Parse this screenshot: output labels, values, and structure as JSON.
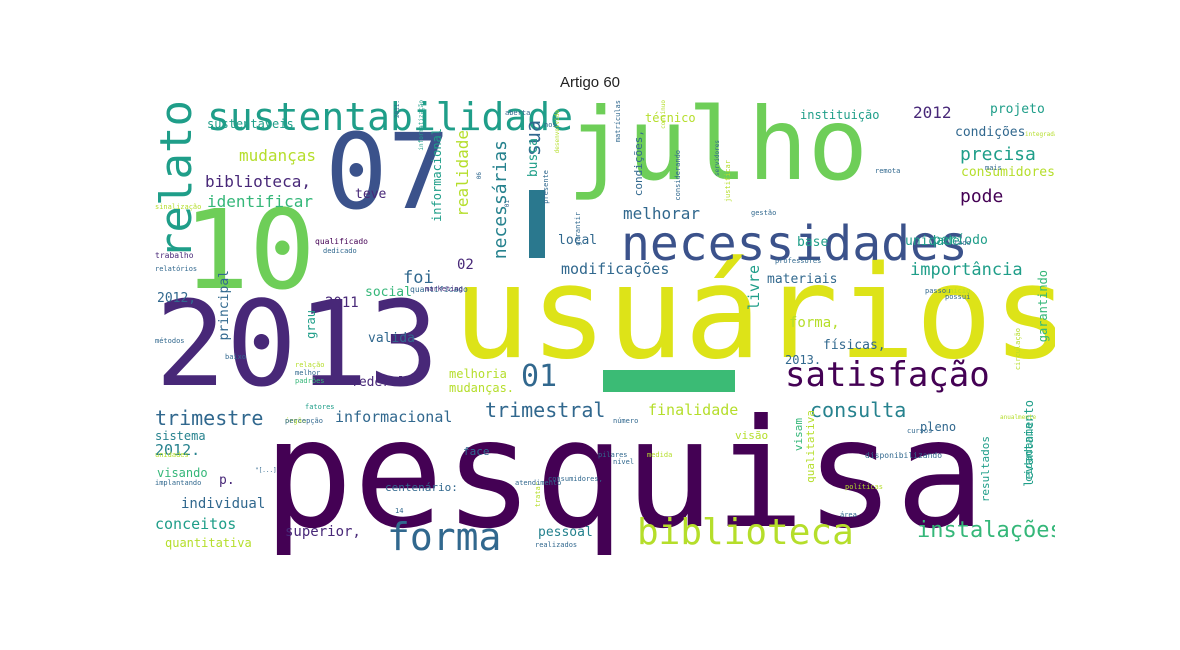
{
  "title": "Artigo 60",
  "colors": {
    "dark_purple": "#440154",
    "indigo": "#482878",
    "blue": "#3b528b",
    "slate": "#31688e",
    "teal": "#26828e",
    "green_teal": "#1f9e89",
    "green": "#35b779",
    "light_green": "#6ece58",
    "lime": "#b5de2b",
    "yellow": "#dde318",
    "pale": "#c8d978"
  },
  "words": [
    {
      "text": "pesquisa",
      "c": "dark_purple"
    },
    {
      "text": "usuários",
      "c": "yellow"
    },
    {
      "text": "2013",
      "c": "indigo"
    },
    {
      "text": "julho",
      "c": "light_green"
    },
    {
      "text": "10",
      "c": "light_green"
    },
    {
      "text": "07",
      "c": "blue"
    },
    {
      "text": "necessidades",
      "c": "blue"
    },
    {
      "text": "sustentabilidade",
      "c": "green_teal"
    },
    {
      "text": "biblioteca",
      "c": "lime"
    },
    {
      "text": "satisfação",
      "c": "dark_purple"
    },
    {
      "text": "forma",
      "c": "slate"
    },
    {
      "text": "relato",
      "c": "green_teal"
    },
    {
      "text": "01",
      "c": "slate"
    },
    {
      "text": "instalações",
      "c": "green"
    },
    {
      "text": "trimestral",
      "c": "slate"
    },
    {
      "text": "trimestre",
      "c": "slate"
    },
    {
      "text": "consulta",
      "c": "teal"
    },
    {
      "text": "precisa",
      "c": "green_teal"
    },
    {
      "text": "pode",
      "c": "dark_purple"
    },
    {
      "text": "importância",
      "c": "green_teal"
    },
    {
      "text": "mudanças",
      "c": "lime"
    },
    {
      "text": "biblioteca,",
      "c": "indigo"
    },
    {
      "text": "identificar",
      "c": "green"
    },
    {
      "text": "2012",
      "c": "indigo"
    },
    {
      "text": "melhorar",
      "c": "slate"
    },
    {
      "text": "sua",
      "c": "slate"
    },
    {
      "text": "necessárias",
      "c": "teal"
    },
    {
      "text": "realidade",
      "c": "lime"
    },
    {
      "text": "foi",
      "c": "slate"
    },
    {
      "text": "modificações",
      "c": "slate"
    },
    {
      "text": "finalidade",
      "c": "lime"
    },
    {
      "text": "informacional",
      "c": "slate"
    },
    {
      "text": "2012.",
      "c": "teal"
    },
    {
      "text": "conceitos",
      "c": "green_teal"
    },
    {
      "text": "individual",
      "c": "slate"
    },
    {
      "text": "superior,",
      "c": "indigo"
    },
    {
      "text": "pessoal",
      "c": "teal"
    },
    {
      "text": "forma,",
      "c": "lime"
    },
    {
      "text": "02",
      "c": "indigo"
    },
    {
      "text": "2011",
      "c": "indigo"
    },
    {
      "text": "social",
      "c": "green"
    },
    {
      "text": "valida",
      "c": "slate"
    },
    {
      "text": "federal",
      "c": "indigo"
    },
    {
      "text": "melhoria",
      "c": "lime"
    },
    {
      "text": "mudanças.",
      "c": "lime"
    },
    {
      "text": "teve",
      "c": "indigo"
    },
    {
      "text": "local",
      "c": "slate"
    },
    {
      "text": "livre",
      "c": "green_teal"
    },
    {
      "text": "materiais",
      "c": "slate"
    },
    {
      "text": "base",
      "c": "green_teal"
    },
    {
      "text": "unidade",
      "c": "green_teal"
    },
    {
      "text": "período",
      "c": "green_teal"
    },
    {
      "text": "consumidores",
      "c": "lime"
    },
    {
      "text": "condições",
      "c": "slate"
    },
    {
      "text": "projeto",
      "c": "green_teal"
    },
    {
      "text": "instituição",
      "c": "green_teal"
    },
    {
      "text": "técnico",
      "c": "lime"
    },
    {
      "text": "informacional",
      "c": "green_teal"
    },
    {
      "text": "sistema",
      "c": "teal"
    },
    {
      "text": "visando",
      "c": "green"
    },
    {
      "text": "quantitativa",
      "c": "lime"
    },
    {
      "text": "principal",
      "c": "slate"
    },
    {
      "text": "2012,",
      "c": "slate"
    },
    {
      "text": "sustentáveis",
      "c": "green_teal"
    },
    {
      "text": "p.",
      "c": "indigo"
    },
    {
      "text": "centenário:",
      "c": "slate"
    },
    {
      "text": "face",
      "c": "slate"
    },
    {
      "text": "busca",
      "c": "green_teal"
    },
    {
      "text": "físicas,",
      "c": "slate"
    },
    {
      "text": "2013.",
      "c": "slate"
    },
    {
      "text": "pleno",
      "c": "slate"
    },
    {
      "text": "garantindo",
      "c": "green"
    },
    {
      "text": "levantamento",
      "c": "green_teal"
    },
    {
      "text": "cidadania.",
      "c": "green_teal"
    },
    {
      "text": "resultados",
      "c": "green_teal"
    },
    {
      "text": "visam",
      "c": "green"
    },
    {
      "text": "qualitativa",
      "c": "lime"
    },
    {
      "text": "visão",
      "c": "lime"
    },
    {
      "text": "grau",
      "c": "green_teal"
    },
    {
      "text": "condições,",
      "c": "slate"
    },
    {
      "text": "disponibilizando",
      "c": "slate"
    },
    {
      "text": "qualificado",
      "c": "dark_purple"
    },
    {
      "text": "quantificado",
      "c": "slate"
    },
    {
      "text": "marketing",
      "c": "indigo"
    },
    {
      "text": "trabalho",
      "c": "indigo"
    },
    {
      "text": "relatórios",
      "c": "slate"
    },
    {
      "text": "métodos",
      "c": "slate"
    },
    {
      "text": "padrões",
      "c": "green"
    },
    {
      "text": "fatores",
      "c": "green_teal"
    },
    {
      "text": "órgão",
      "c": "lime"
    },
    {
      "text": "percepção",
      "c": "slate"
    },
    {
      "text": "número",
      "c": "slate"
    },
    {
      "text": "pilares",
      "c": "slate"
    },
    {
      "text": "medida",
      "c": "lime"
    },
    {
      "text": "nível",
      "c": "slate"
    },
    {
      "text": "tratar",
      "c": "lime"
    },
    {
      "text": "consumidores,",
      "c": "slate"
    },
    {
      "text": "realizados",
      "c": "slate"
    },
    {
      "text": "políticas",
      "c": "lime"
    },
    {
      "text": "área",
      "c": "slate"
    },
    {
      "text": "cursos",
      "c": "slate"
    },
    {
      "text": "implantando",
      "c": "slate"
    },
    {
      "text": "unidades",
      "c": "lime"
    },
    {
      "text": "baixo",
      "c": "slate"
    },
    {
      "text": "relação",
      "c": "lime"
    },
    {
      "text": "melhor",
      "c": "slate"
    },
    {
      "text": "circulação",
      "c": "lime"
    },
    {
      "text": "passou",
      "c": "slate"
    },
    {
      "text": "gestão",
      "c": "slate"
    },
    {
      "text": "professores",
      "c": "slate"
    },
    {
      "text": "garantir",
      "c": "slate"
    },
    {
      "text": "matrículas",
      "c": "slate"
    },
    {
      "text": "considerando",
      "c": "slate"
    },
    {
      "text": "justificar",
      "c": "lime"
    },
    {
      "text": "presente",
      "c": "slate"
    },
    {
      "text": "dedicado",
      "c": "slate"
    },
    {
      "text": "sinalização",
      "c": "lime"
    },
    {
      "text": "remota",
      "c": "slate"
    },
    {
      "text": "todo",
      "c": "slate"
    },
    {
      "text": "mais",
      "c": "slate"
    },
    {
      "text": "início",
      "c": "lime"
    },
    {
      "text": "possui",
      "c": "slate"
    },
    {
      "text": "atendimento",
      "c": "slate"
    },
    {
      "text": "2011.",
      "c": "slate"
    },
    {
      "text": "informatização",
      "c": "green_teal"
    },
    {
      "text": "desenvolvido",
      "c": "lime"
    },
    {
      "text": "servidores",
      "c": "slate"
    },
    {
      "text": "contínuo",
      "c": "lime"
    },
    {
      "text": "aberta",
      "c": "slate"
    },
    {
      "text": "nos",
      "c": "slate"
    },
    {
      "text": "14",
      "c": "slate"
    },
    {
      "text": "06",
      "c": "slate"
    },
    {
      "text": "01",
      "c": "slate"
    },
    {
      "text": "\"[...]",
      "c": "slate"
    },
    {
      "text": "integrada",
      "c": "lime"
    },
    {
      "text": "anualmente",
      "c": "lime"
    },
    {
      "text": "mar.",
      "c": "slate"
    },
    {
      "text": "indica",
      "c": "slate"
    },
    {
      "text": "feita",
      "c": "lime"
    }
  ]
}
